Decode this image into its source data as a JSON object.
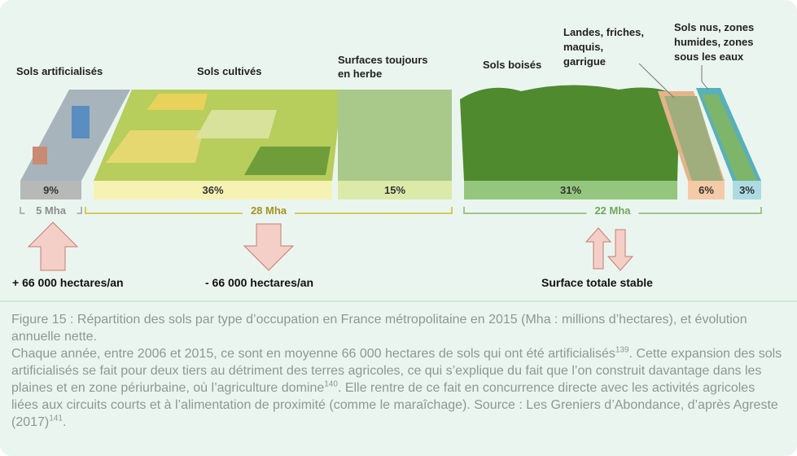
{
  "figure": {
    "categories": [
      {
        "label": "Sols artificialisés",
        "percent": "9%"
      },
      {
        "label": "Sols cultivés",
        "percent": "36%"
      },
      {
        "label": "Surfaces toujours en herbe",
        "percent": "15%"
      },
      {
        "label": "Sols boisés",
        "percent": "31%"
      },
      {
        "label": "Landes, friches, maquis, garrigue",
        "percent": "6%"
      },
      {
        "label": "Sols nus, zones humides, zones sous les eaux",
        "percent": "3%"
      }
    ],
    "groups": [
      "5 Mha",
      "28 Mha",
      "22 Mha"
    ],
    "changes": [
      "+ 66 000 hectares/an",
      "- 66 000 hectares/an",
      "Surface totale stable"
    ]
  },
  "caption": {
    "title": "Figure 15 : Répartition des sols par type d’occupation en France métropolitaine en 2015 (Mha : millions d’hectares), et évolution annuelle nette.",
    "text_1": "Chaque année, entre 2006 et 2015, ce sont en moyenne 66 000 hectares de sols qui ont été artificialisés",
    "note_1": "139",
    "text_2": ". Cette expansion des sols artificialisés se fait pour deux tiers au détriment des terres agricoles, ce qui s’explique du fait que l’on construit davantage dans les plaines et en zone périurbaine, où l’agriculture domine",
    "note_2": "140",
    "text_3": ". Elle rentre de ce fait en concurrence directe avec les activités agricoles liées aux circuits courts et à l’alimentation de proximité (comme le maraîchage). Source : Les Greniers d’Abondance, d’après Agreste (2017)",
    "note_3": "141",
    "text_4": "."
  }
}
